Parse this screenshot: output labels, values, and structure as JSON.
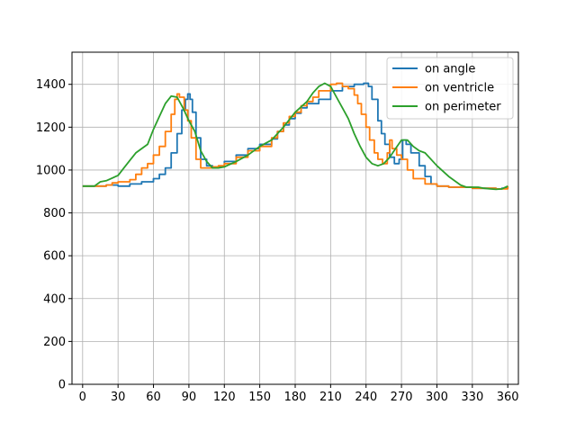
{
  "chart_data": {
    "type": "line",
    "title": "",
    "xlabel": "",
    "ylabel": "",
    "xlim": [
      -9,
      369
    ],
    "ylim": [
      0,
      1550
    ],
    "xticks": [
      0,
      30,
      60,
      90,
      120,
      150,
      180,
      210,
      240,
      270,
      300,
      330,
      360
    ],
    "yticks": [
      0,
      200,
      400,
      600,
      800,
      1000,
      1200,
      1400
    ],
    "grid": true,
    "legend_position": "top-right",
    "series": [
      {
        "name": "on angle",
        "color": "#1f77b4",
        "step": true,
        "points": [
          [
            0,
            925
          ],
          [
            10,
            925
          ],
          [
            20,
            930
          ],
          [
            30,
            925
          ],
          [
            40,
            935
          ],
          [
            50,
            945
          ],
          [
            60,
            960
          ],
          [
            65,
            980
          ],
          [
            70,
            1010
          ],
          [
            75,
            1080
          ],
          [
            80,
            1170
          ],
          [
            84,
            1280
          ],
          [
            87,
            1330
          ],
          [
            89,
            1355
          ],
          [
            91,
            1330
          ],
          [
            93,
            1270
          ],
          [
            96,
            1150
          ],
          [
            100,
            1050
          ],
          [
            105,
            1020
          ],
          [
            110,
            1010
          ],
          [
            115,
            1015
          ],
          [
            120,
            1040
          ],
          [
            130,
            1070
          ],
          [
            140,
            1100
          ],
          [
            150,
            1120
          ],
          [
            160,
            1145
          ],
          [
            165,
            1180
          ],
          [
            170,
            1210
          ],
          [
            175,
            1240
          ],
          [
            180,
            1265
          ],
          [
            185,
            1290
          ],
          [
            190,
            1310
          ],
          [
            200,
            1330
          ],
          [
            210,
            1370
          ],
          [
            220,
            1390
          ],
          [
            230,
            1400
          ],
          [
            238,
            1405
          ],
          [
            242,
            1390
          ],
          [
            245,
            1330
          ],
          [
            250,
            1230
          ],
          [
            253,
            1170
          ],
          [
            256,
            1120
          ],
          [
            260,
            1060
          ],
          [
            264,
            1030
          ],
          [
            268,
            1050
          ],
          [
            271,
            1140
          ],
          [
            274,
            1120
          ],
          [
            278,
            1080
          ],
          [
            285,
            1020
          ],
          [
            290,
            970
          ],
          [
            295,
            935
          ],
          [
            300,
            925
          ],
          [
            310,
            920
          ],
          [
            320,
            920
          ],
          [
            330,
            915
          ],
          [
            340,
            915
          ],
          [
            350,
            912
          ],
          [
            355,
            915
          ],
          [
            360,
            925
          ]
        ]
      },
      {
        "name": "on ventricle",
        "color": "#ff7f0e",
        "step": true,
        "points": [
          [
            0,
            925
          ],
          [
            10,
            925
          ],
          [
            20,
            930
          ],
          [
            25,
            940
          ],
          [
            30,
            945
          ],
          [
            40,
            955
          ],
          [
            45,
            980
          ],
          [
            50,
            1010
          ],
          [
            55,
            1030
          ],
          [
            60,
            1070
          ],
          [
            65,
            1110
          ],
          [
            70,
            1180
          ],
          [
            75,
            1260
          ],
          [
            78,
            1330
          ],
          [
            80,
            1355
          ],
          [
            82,
            1340
          ],
          [
            86,
            1280
          ],
          [
            89,
            1230
          ],
          [
            92,
            1150
          ],
          [
            96,
            1050
          ],
          [
            100,
            1010
          ],
          [
            105,
            1010
          ],
          [
            110,
            1015
          ],
          [
            115,
            1020
          ],
          [
            120,
            1030
          ],
          [
            130,
            1060
          ],
          [
            140,
            1090
          ],
          [
            150,
            1110
          ],
          [
            160,
            1150
          ],
          [
            165,
            1180
          ],
          [
            170,
            1220
          ],
          [
            175,
            1250
          ],
          [
            180,
            1270
          ],
          [
            185,
            1300
          ],
          [
            190,
            1320
          ],
          [
            195,
            1340
          ],
          [
            200,
            1370
          ],
          [
            210,
            1400
          ],
          [
            215,
            1405
          ],
          [
            220,
            1390
          ],
          [
            225,
            1380
          ],
          [
            230,
            1350
          ],
          [
            233,
            1310
          ],
          [
            236,
            1260
          ],
          [
            240,
            1200
          ],
          [
            243,
            1140
          ],
          [
            247,
            1080
          ],
          [
            250,
            1050
          ],
          [
            254,
            1030
          ],
          [
            258,
            1080
          ],
          [
            260,
            1140
          ],
          [
            262,
            1100
          ],
          [
            266,
            1070
          ],
          [
            270,
            1050
          ],
          [
            275,
            1000
          ],
          [
            280,
            960
          ],
          [
            290,
            935
          ],
          [
            300,
            925
          ],
          [
            310,
            920
          ],
          [
            320,
            920
          ],
          [
            330,
            915
          ],
          [
            340,
            915
          ],
          [
            350,
            912
          ],
          [
            360,
            925
          ]
        ]
      },
      {
        "name": "on perimeter",
        "color": "#2ca02c",
        "step": false,
        "points": [
          [
            0,
            925
          ],
          [
            10,
            925
          ],
          [
            15,
            945
          ],
          [
            20,
            950
          ],
          [
            30,
            975
          ],
          [
            35,
            1010
          ],
          [
            40,
            1045
          ],
          [
            45,
            1080
          ],
          [
            50,
            1100
          ],
          [
            55,
            1120
          ],
          [
            60,
            1190
          ],
          [
            65,
            1250
          ],
          [
            70,
            1310
          ],
          [
            75,
            1345
          ],
          [
            80,
            1340
          ],
          [
            85,
            1290
          ],
          [
            90,
            1230
          ],
          [
            95,
            1180
          ],
          [
            100,
            1090
          ],
          [
            105,
            1040
          ],
          [
            110,
            1010
          ],
          [
            115,
            1010
          ],
          [
            120,
            1015
          ],
          [
            130,
            1040
          ],
          [
            140,
            1070
          ],
          [
            150,
            1110
          ],
          [
            160,
            1140
          ],
          [
            170,
            1200
          ],
          [
            180,
            1270
          ],
          [
            190,
            1320
          ],
          [
            195,
            1360
          ],
          [
            200,
            1390
          ],
          [
            205,
            1405
          ],
          [
            210,
            1390
          ],
          [
            215,
            1340
          ],
          [
            220,
            1290
          ],
          [
            225,
            1240
          ],
          [
            230,
            1170
          ],
          [
            235,
            1110
          ],
          [
            240,
            1060
          ],
          [
            245,
            1030
          ],
          [
            250,
            1020
          ],
          [
            255,
            1030
          ],
          [
            260,
            1060
          ],
          [
            265,
            1100
          ],
          [
            270,
            1140
          ],
          [
            275,
            1140
          ],
          [
            280,
            1110
          ],
          [
            285,
            1090
          ],
          [
            290,
            1080
          ],
          [
            300,
            1020
          ],
          [
            310,
            970
          ],
          [
            320,
            930
          ],
          [
            325,
            920
          ],
          [
            330,
            920
          ],
          [
            335,
            920
          ],
          [
            340,
            915
          ],
          [
            345,
            912
          ],
          [
            350,
            910
          ],
          [
            355,
            912
          ],
          [
            360,
            925
          ]
        ]
      }
    ]
  }
}
